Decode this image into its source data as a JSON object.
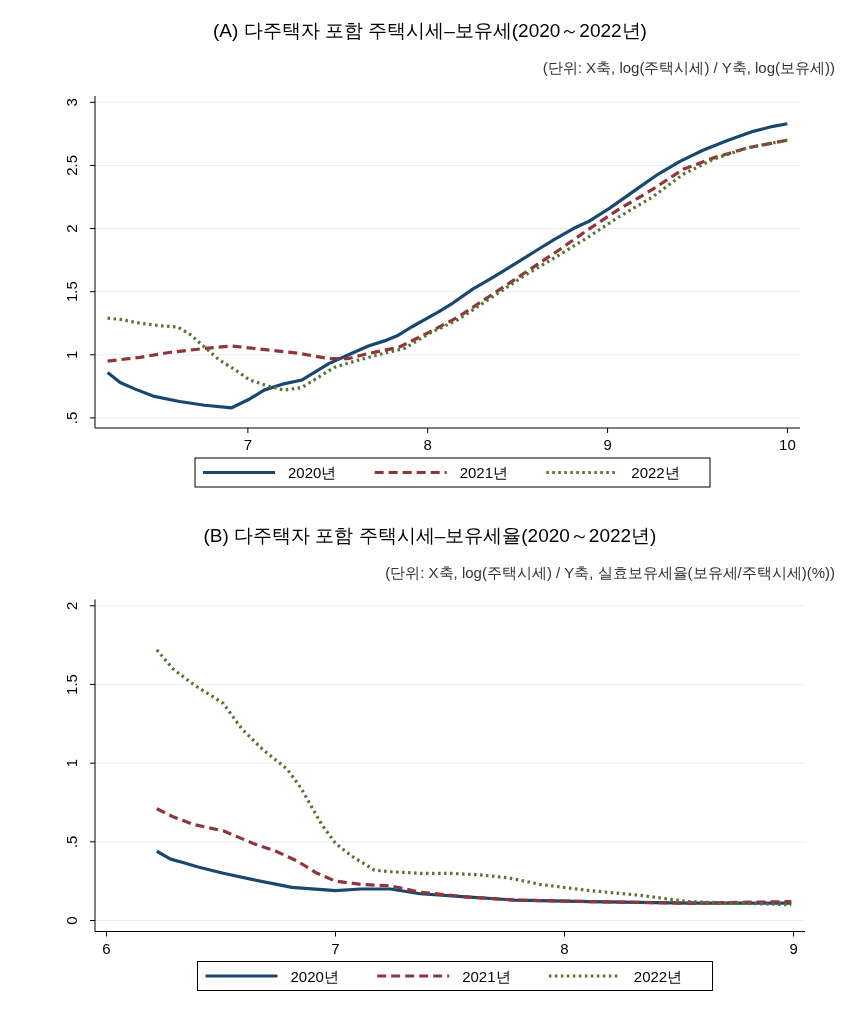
{
  "chart_data": [
    {
      "type": "line",
      "title": "(A) 다주택자 포함 주택시세–보유세(2020～2022년)",
      "subtitle": "(단위:  X축,  log(주택시세)  /  Y축,  log(보유세))",
      "xlim": [
        6.15,
        10.07
      ],
      "ylim": [
        0.42,
        3.05
      ],
      "xticks": [
        7,
        8,
        9,
        10
      ],
      "yticks": [
        {
          "value": 0.5,
          "label": ".5"
        },
        1,
        1.5,
        2,
        2.5,
        3
      ],
      "grid": "y",
      "legend": "bottom",
      "series": [
        {
          "name": "2020년",
          "color": "#1a476f",
          "line_style": "solid",
          "x": [
            6.22,
            6.29,
            6.37,
            6.48,
            6.62,
            6.76,
            6.91,
            7.01,
            7.09,
            7.2,
            7.3,
            7.37,
            7.45,
            7.56,
            7.67,
            7.76,
            7.83,
            7.91,
            8.06,
            8.14,
            8.25,
            8.37,
            8.53,
            8.62,
            8.7,
            8.81,
            8.9,
            9.01,
            9.17,
            9.28,
            9.4,
            9.53,
            9.67,
            9.81,
            9.92,
            10.0
          ],
          "values": [
            0.86,
            0.78,
            0.73,
            0.67,
            0.63,
            0.6,
            0.58,
            0.65,
            0.72,
            0.77,
            0.8,
            0.86,
            0.93,
            1.0,
            1.07,
            1.11,
            1.15,
            1.22,
            1.34,
            1.41,
            1.52,
            1.62,
            1.76,
            1.84,
            1.91,
            2.0,
            2.06,
            2.16,
            2.32,
            2.43,
            2.53,
            2.62,
            2.7,
            2.77,
            2.81,
            2.83
          ]
        },
        {
          "name": "2021년",
          "color": "#90353b",
          "line_style": "dashed",
          "x": [
            6.22,
            6.4,
            6.57,
            6.76,
            6.91,
            7.04,
            7.29,
            7.45,
            7.56,
            7.67,
            7.84,
            8.01,
            8.17,
            8.34,
            8.53,
            8.73,
            8.89,
            9.06,
            9.25,
            9.42,
            9.59,
            9.78,
            10.0
          ],
          "values": [
            0.95,
            0.98,
            1.02,
            1.05,
            1.07,
            1.05,
            1.01,
            0.97,
            0.97,
            1.01,
            1.06,
            1.18,
            1.3,
            1.46,
            1.64,
            1.83,
            1.99,
            2.15,
            2.31,
            2.47,
            2.56,
            2.64,
            2.7
          ]
        },
        {
          "name": "2022년",
          "color": "#55752f",
          "line_style": "dotted",
          "x": [
            6.22,
            6.29,
            6.4,
            6.51,
            6.61,
            6.68,
            6.76,
            6.84,
            6.93,
            7.01,
            7.12,
            7.2,
            7.3,
            7.39,
            7.48,
            7.62,
            7.78,
            7.87,
            8.01,
            8.17,
            8.34,
            8.53,
            8.73,
            8.89,
            9.06,
            9.25,
            9.42,
            9.59,
            9.78,
            10.0
          ],
          "values": [
            1.29,
            1.28,
            1.25,
            1.23,
            1.22,
            1.16,
            1.06,
            0.96,
            0.88,
            0.8,
            0.75,
            0.72,
            0.74,
            0.82,
            0.9,
            0.96,
            1.02,
            1.05,
            1.17,
            1.28,
            1.44,
            1.62,
            1.79,
            1.93,
            2.09,
            2.25,
            2.43,
            2.55,
            2.64,
            2.7
          ]
        }
      ]
    },
    {
      "type": "line",
      "title": "(B) 다주택자 포함 주택시세–보유세율(2020～2022년)",
      "subtitle": "(단위:  X축,  log(주택시세)  /  Y축,  실효보유세율(보유세/주택시세)(%))",
      "xlim": [
        5.95,
        9.05
      ],
      "ylim": [
        -0.07,
        2.04
      ],
      "xticks": [
        6,
        7,
        8,
        9
      ],
      "yticks": [
        0,
        {
          "value": 0.5,
          "label": ".5"
        },
        1,
        1.5,
        2
      ],
      "grid": "y",
      "legend": "bottom",
      "series": [
        {
          "name": "2020년",
          "color": "#1a476f",
          "line_style": "solid",
          "x": [
            6.22,
            6.28,
            6.33,
            6.4,
            6.51,
            6.64,
            6.81,
            7.0,
            7.11,
            7.24,
            7.37,
            7.57,
            7.78,
            8.11,
            8.54,
            8.99
          ],
          "values": [
            0.44,
            0.39,
            0.37,
            0.34,
            0.3,
            0.26,
            0.21,
            0.19,
            0.2,
            0.2,
            0.17,
            0.15,
            0.13,
            0.12,
            0.11,
            0.11
          ]
        },
        {
          "name": "2021년",
          "color": "#90353b",
          "line_style": "dashed",
          "x": [
            6.22,
            6.29,
            6.38,
            6.51,
            6.64,
            6.74,
            6.83,
            6.92,
            7.0,
            7.11,
            7.24,
            7.37,
            7.57,
            7.78,
            8.11,
            8.54,
            8.99
          ],
          "values": [
            0.71,
            0.66,
            0.61,
            0.57,
            0.49,
            0.44,
            0.38,
            0.3,
            0.25,
            0.23,
            0.22,
            0.18,
            0.15,
            0.13,
            0.12,
            0.11,
            0.12
          ]
        },
        {
          "name": "2022년",
          "color": "#55752f",
          "line_style": "dotted",
          "x": [
            6.22,
            6.29,
            6.38,
            6.51,
            6.59,
            6.68,
            6.79,
            6.85,
            6.94,
            7.0,
            7.07,
            7.17,
            7.24,
            7.37,
            7.5,
            7.63,
            7.76,
            7.89,
            8.11,
            8.33,
            8.54,
            8.76,
            8.99
          ],
          "values": [
            1.72,
            1.6,
            1.5,
            1.38,
            1.22,
            1.09,
            0.96,
            0.84,
            0.61,
            0.49,
            0.41,
            0.32,
            0.31,
            0.3,
            0.3,
            0.29,
            0.27,
            0.23,
            0.19,
            0.16,
            0.12,
            0.11,
            0.1
          ]
        }
      ]
    }
  ]
}
